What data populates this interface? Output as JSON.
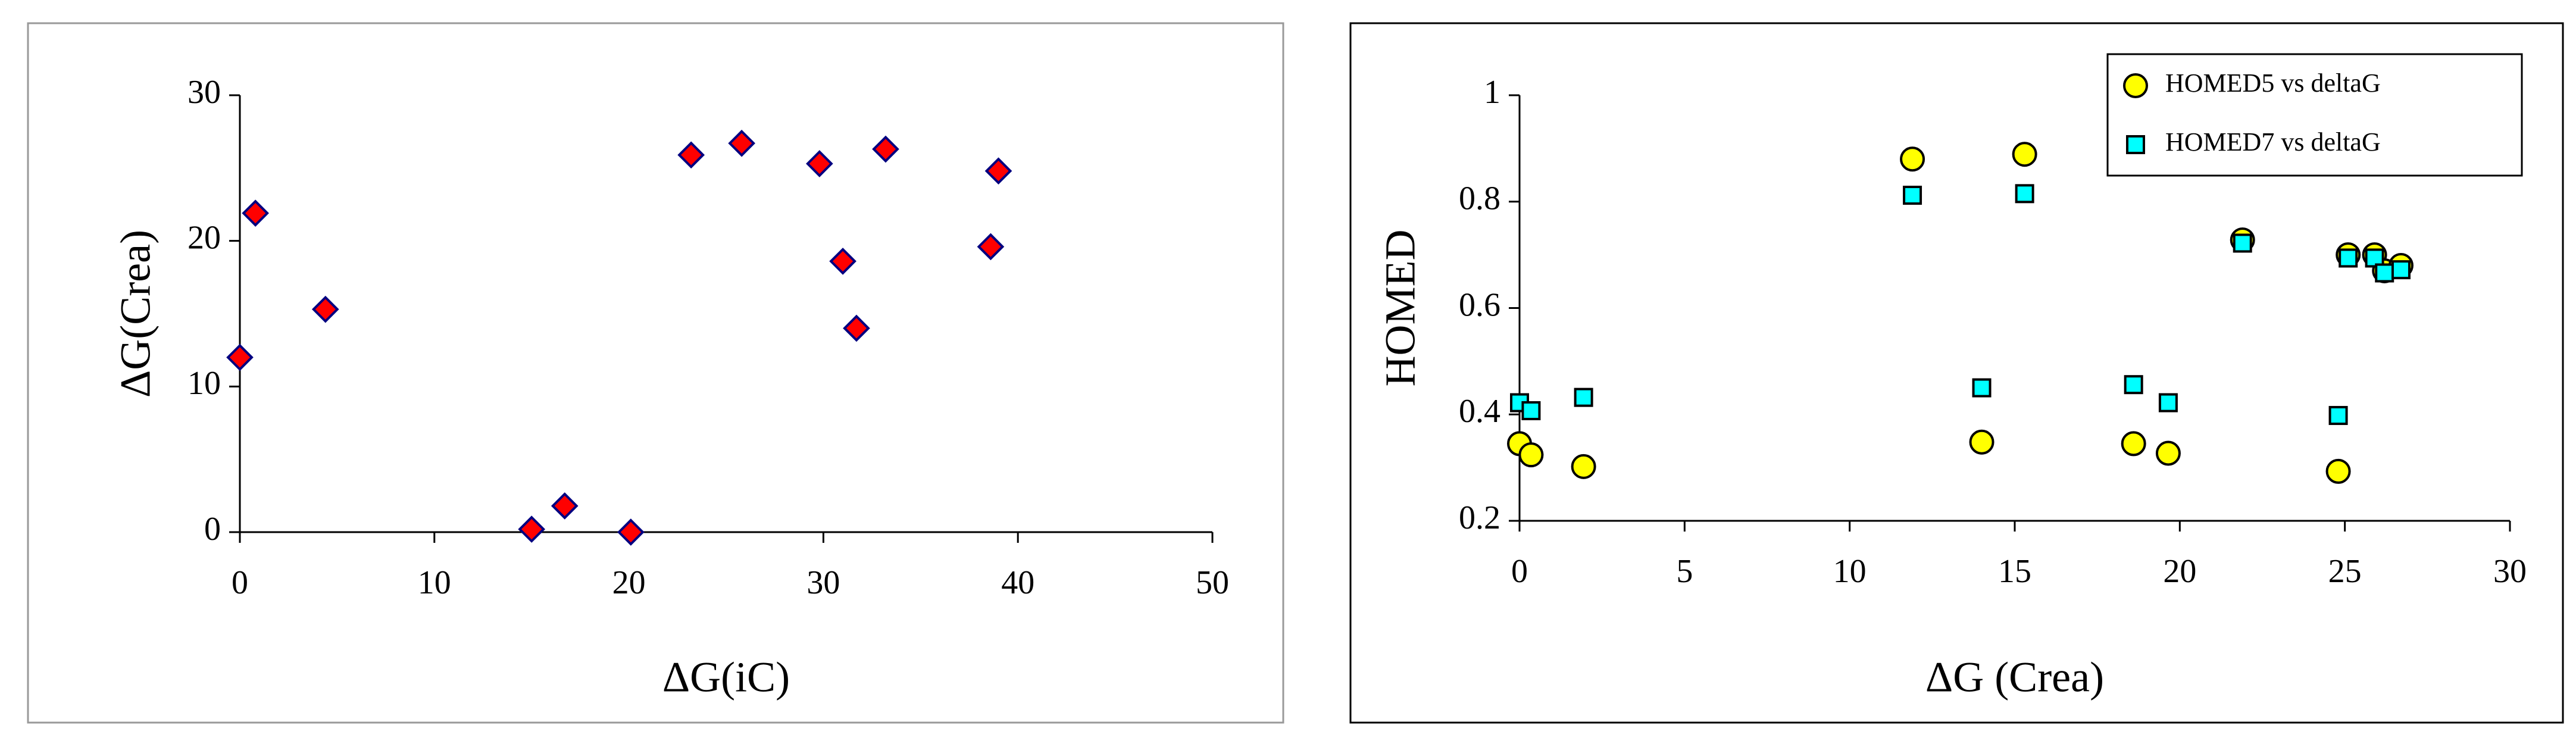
{
  "chart_data": [
    {
      "type": "scatter",
      "x_label": "ΔG(iC)",
      "y_label": "ΔG(Crea)",
      "x": [
        0,
        0.8,
        4.4,
        15.0,
        16.7,
        20.1,
        23.2,
        25.8,
        29.8,
        31.0,
        31.7,
        33.2,
        38.6,
        39.0
      ],
      "values": [
        12,
        21.9,
        15.3,
        0.2,
        1.8,
        0,
        25.9,
        26.7,
        25.3,
        18.6,
        14.0,
        26.3,
        19.6,
        24.8
      ],
      "color": "#ff0000",
      "marker": "diamond",
      "xlim": [
        0,
        50
      ],
      "xticks": [
        0,
        10,
        20,
        30,
        40,
        50
      ],
      "ylim": [
        0,
        30
      ],
      "yticks": [
        0,
        10,
        20,
        30
      ]
    },
    {
      "type": "scatter",
      "x_label": "ΔG (Crea)",
      "y_label": "HOMED",
      "x": [
        0,
        0.35,
        1.94,
        11.9,
        15.3,
        14.0,
        18.6,
        19.65,
        21.9,
        24.8,
        25.1,
        25.9,
        26.2,
        26.7
      ],
      "series": [
        {
          "name": "HOMED5 vs deltaG",
          "color": "#ffff00",
          "marker": "circle",
          "values": [
            0.345,
            0.324,
            0.302,
            0.88,
            0.889,
            0.348,
            0.345,
            0.327,
            0.728,
            0.293,
            0.7,
            0.7,
            0.67,
            0.68
          ]
        },
        {
          "name": "HOMED7 vs deltaG",
          "color": "#00ffff",
          "marker": "square",
          "values": [
            0.422,
            0.407,
            0.432,
            0.812,
            0.815,
            0.45,
            0.456,
            0.422,
            0.722,
            0.398,
            0.694,
            0.694,
            0.666,
            0.672
          ]
        }
      ],
      "xlim": [
        0,
        30
      ],
      "xticks": [
        0,
        5,
        10,
        15,
        20,
        25,
        30
      ],
      "ylim": [
        0.2,
        1
      ],
      "yticks": [
        0.2,
        0.4,
        0.6,
        0.8,
        1
      ],
      "legend": "upper right"
    }
  ]
}
